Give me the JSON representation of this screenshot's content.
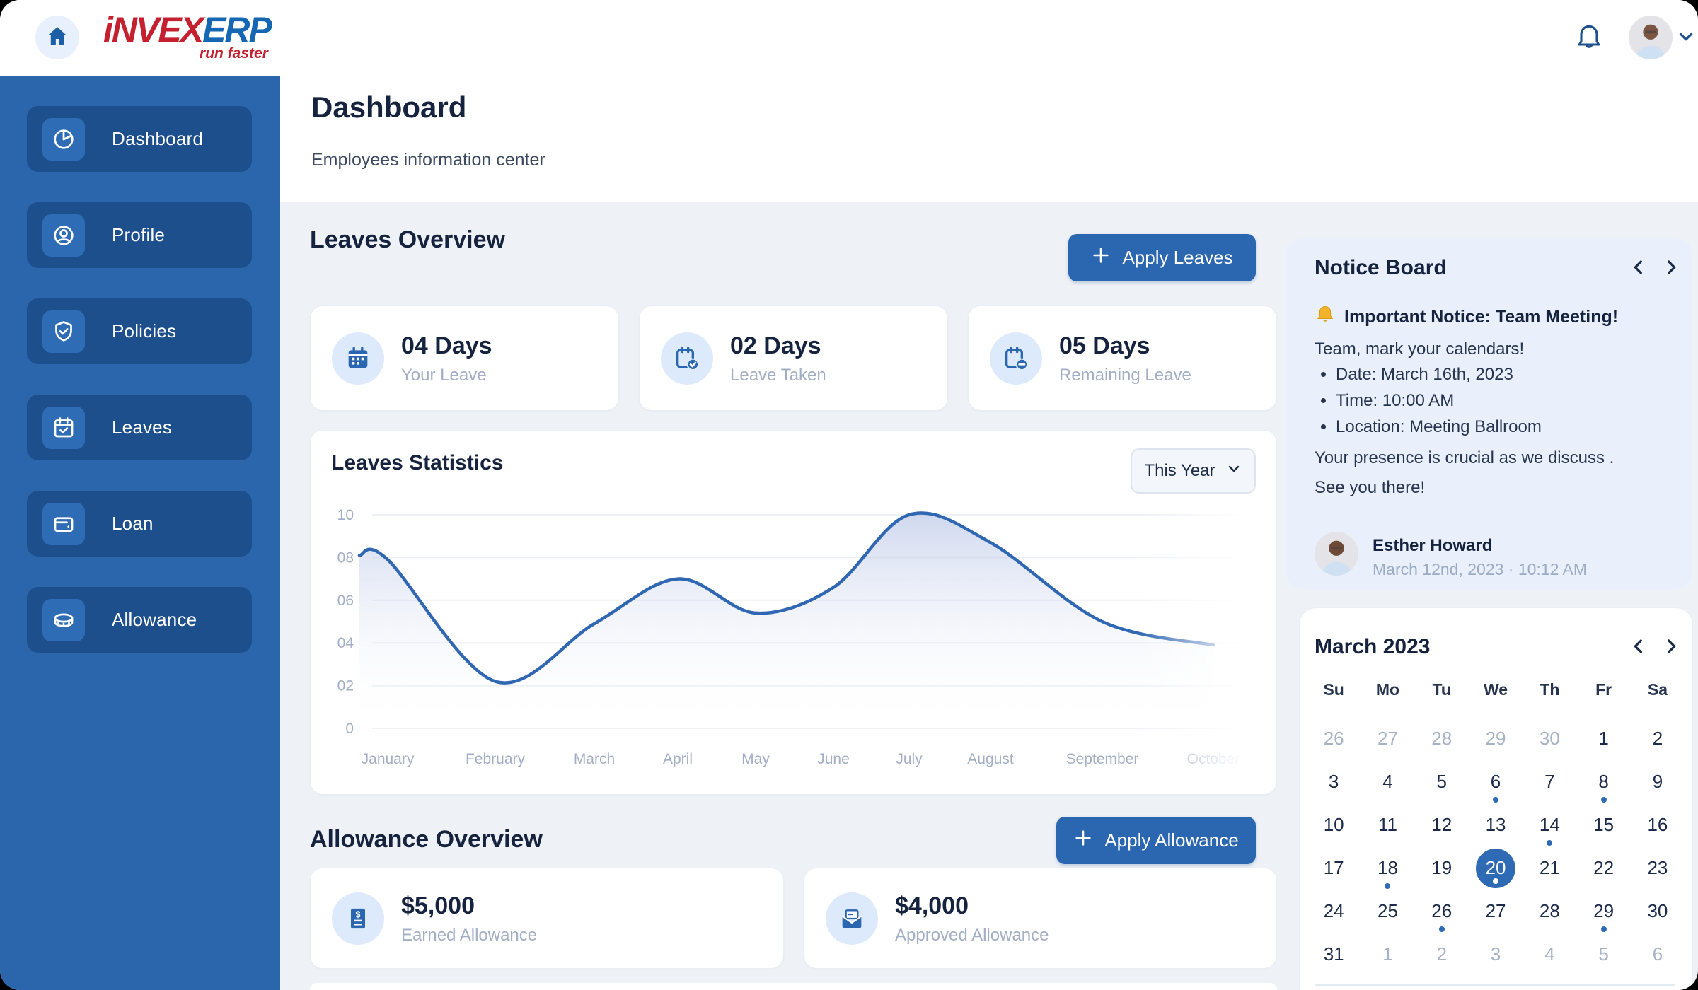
{
  "topbar": {
    "logo_primary": "iNVEX",
    "logo_secondary": "ERP",
    "logo_tagline": "run faster"
  },
  "sidebar": {
    "items": [
      {
        "label": "Dashboard"
      },
      {
        "label": "Profile"
      },
      {
        "label": "Policies"
      },
      {
        "label": "Leaves"
      },
      {
        "label": "Loan"
      },
      {
        "label": "Allowance"
      }
    ]
  },
  "page": {
    "title": "Dashboard",
    "subtitle": "Employees information center"
  },
  "leaves": {
    "section_title": "Leaves Overview",
    "apply_button": "Apply Leaves",
    "cards": [
      {
        "value": "04 Days",
        "label": "Your Leave"
      },
      {
        "value": "02 Days",
        "label": "Leave Taken"
      },
      {
        "value": "05 Days",
        "label": "Remaining Leave"
      }
    ]
  },
  "chart": {
    "title": "Leaves Statistics",
    "filter": "This Year"
  },
  "chart_data": {
    "type": "area",
    "title": "Leaves Statistics",
    "categories": [
      "January",
      "February",
      "March",
      "April",
      "May",
      "June",
      "July",
      "August",
      "September",
      "October"
    ],
    "values": [
      7.9,
      2.2,
      4.9,
      7.0,
      5.4,
      6.6,
      10.0,
      8.7,
      5.0,
      3.9
    ],
    "ylim": [
      0,
      10
    ],
    "ytick_values": [
      10,
      8,
      6,
      4,
      2,
      0
    ],
    "ytick_labels": [
      "10",
      "08",
      "06",
      "04",
      "02",
      "0"
    ],
    "line_color": "#2f67b3",
    "grid": "horizontal",
    "legend": "none"
  },
  "allowance": {
    "section_title": "Allowance Overview",
    "apply_button": "Apply Allowance",
    "cards": [
      {
        "value": "$5,000",
        "label": "Earned Allowance"
      },
      {
        "value": "$4,000",
        "label": "Approved Allowance"
      }
    ]
  },
  "notice": {
    "title": "Notice Board",
    "headline": "Important Notice: Team Meeting!",
    "intro": "Team, mark your calendars!",
    "bullets": [
      "Date: March 16th, 2023",
      "Time: 10:00 AM",
      "Location: Meeting Ballroom"
    ],
    "line1": "Your presence is crucial as we discuss .",
    "line2": "See you there!",
    "author": "Esther Howard",
    "timestamp": "March 12nd, 2023 · 10:12 AM"
  },
  "calendar": {
    "title": "March 2023",
    "weekdays": [
      "Su",
      "Mo",
      "Tu",
      "We",
      "Th",
      "Fr",
      "Sa"
    ],
    "weeks": [
      [
        "26m",
        "27m",
        "28m",
        "29m",
        "30m",
        "1",
        "2"
      ],
      [
        "3",
        "4",
        "5",
        "6d",
        "7",
        "8d",
        "9"
      ],
      [
        "10",
        "11",
        "12",
        "13",
        "14d",
        "15",
        "16"
      ],
      [
        "17",
        "18d",
        "19",
        "20s",
        "21",
        "22",
        "23"
      ],
      [
        "24",
        "25",
        "26d",
        "27",
        "28",
        "29d",
        "30"
      ],
      [
        "31",
        "1m",
        "2m",
        "3m",
        "4m",
        "5m",
        "6m"
      ]
    ],
    "selected_day": "20"
  },
  "colors": {
    "accent": "#2b67b0",
    "sidebar_bg": "#2b66ad",
    "sidebar_item_bg": "#1d4f8c",
    "notice_bg": "#e9f0fc",
    "content_bg": "#eef2f7",
    "text_dark": "#16233f",
    "text_muted": "#a2aec5",
    "logo_red": "#c5202f",
    "logo_blue": "#1566b3"
  }
}
